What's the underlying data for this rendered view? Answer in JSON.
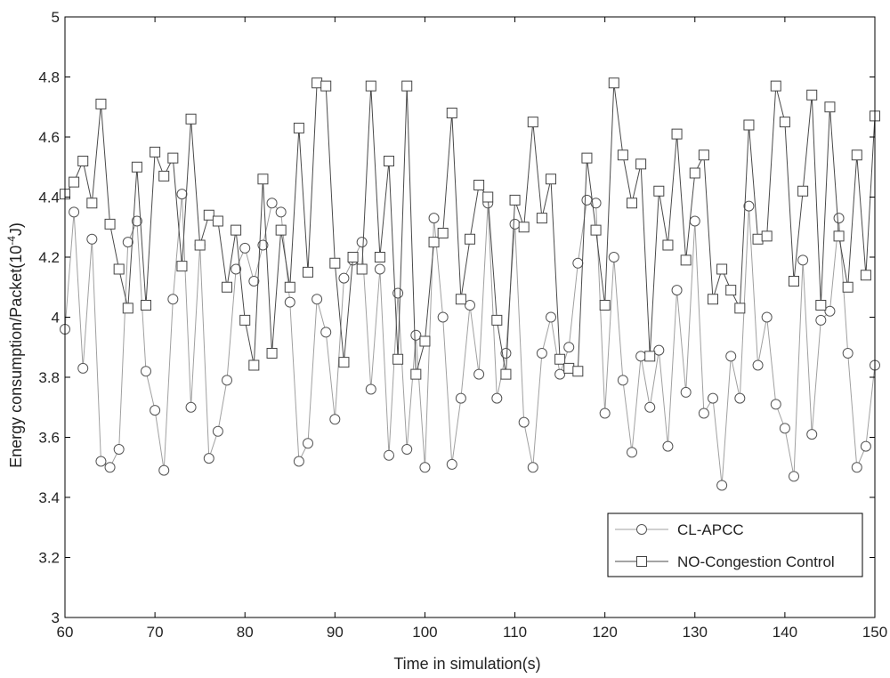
{
  "chart_data": {
    "type": "line",
    "xlabel": "Time in simulation(s)",
    "ylabel": "Energy consumption/Packet(10^-4 J)",
    "ylabel_main": "Energy consumption/Packet(10",
    "ylabel_exp": "-4",
    "ylabel_end": "J)",
    "xlim": [
      60,
      150
    ],
    "ylim": [
      3,
      5
    ],
    "x_ticks": [
      60,
      70,
      80,
      90,
      100,
      110,
      120,
      130,
      140,
      150
    ],
    "x_tick_labels": [
      "60",
      "70",
      "80",
      "90",
      "100",
      "110",
      "120",
      "130",
      "140",
      "150"
    ],
    "y_ticks": [
      3,
      3.2,
      3.4,
      3.6,
      3.8,
      4,
      4.2,
      4.4,
      4.6,
      4.8,
      5
    ],
    "y_tick_labels": [
      "3",
      "3.2",
      "3.4",
      "3.6",
      "3.8",
      "4",
      "4.2",
      "4.4",
      "4.6",
      "4.8",
      "5"
    ],
    "grid": false,
    "legend_position": "bottom-right",
    "x": [
      60,
      61,
      62,
      63,
      64,
      65,
      66,
      67,
      68,
      69,
      70,
      71,
      72,
      73,
      74,
      75,
      76,
      77,
      78,
      79,
      80,
      81,
      82,
      83,
      84,
      85,
      86,
      87,
      88,
      89,
      90,
      91,
      92,
      93,
      94,
      95,
      96,
      97,
      98,
      99,
      100,
      101,
      102,
      103,
      104,
      105,
      106,
      107,
      108,
      109,
      110,
      111,
      112,
      113,
      114,
      115,
      116,
      117,
      118,
      119,
      120,
      121,
      122,
      123,
      124,
      125,
      126,
      127,
      128,
      129,
      130,
      131,
      132,
      133,
      134,
      135,
      136,
      137,
      138,
      139,
      140,
      141,
      142,
      143,
      144,
      145,
      146,
      147,
      148,
      149,
      150
    ],
    "series": [
      {
        "name": "CL-APCC",
        "marker": "circle",
        "color": "#a0a0a0",
        "values": [
          3.96,
          4.35,
          3.83,
          4.26,
          3.52,
          3.5,
          3.56,
          4.25,
          4.32,
          3.82,
          3.69,
          3.49,
          4.06,
          4.41,
          3.7,
          4.24,
          3.53,
          3.62,
          3.79,
          4.16,
          4.23,
          4.12,
          4.24,
          4.38,
          4.35,
          4.05,
          3.52,
          3.58,
          4.06,
          3.95,
          3.66,
          4.13,
          4.19,
          4.25,
          3.76,
          4.16,
          3.54,
          4.08,
          3.56,
          3.94,
          3.5,
          4.33,
          4.0,
          3.51,
          3.73,
          4.04,
          3.81,
          4.38,
          3.73,
          3.88,
          4.31,
          3.65,
          3.5,
          3.88,
          4.0,
          3.81,
          3.9,
          4.18,
          4.39,
          4.38,
          3.68,
          4.2,
          3.79,
          3.55,
          3.87,
          3.7,
          3.89,
          3.57,
          4.09,
          3.75,
          4.32,
          3.68,
          3.73,
          3.44,
          3.87,
          3.73,
          4.37,
          3.84,
          4.0,
          3.71,
          3.63,
          3.47,
          4.19,
          3.61,
          3.99,
          4.02,
          4.33,
          3.88,
          3.5,
          3.57,
          3.84
        ]
      },
      {
        "name": "NO-Congestion Control",
        "marker": "square",
        "color": "#4a4a4a",
        "values": [
          4.41,
          4.45,
          4.52,
          4.38,
          4.71,
          4.31,
          4.16,
          4.03,
          4.5,
          4.04,
          4.55,
          4.47,
          4.53,
          4.17,
          4.66,
          4.24,
          4.34,
          4.32,
          4.1,
          4.29,
          3.99,
          3.84,
          4.46,
          3.88,
          4.29,
          4.1,
          4.63,
          4.15,
          4.78,
          4.77,
          4.18,
          3.85,
          4.2,
          4.16,
          4.77,
          4.2,
          4.52,
          3.86,
          4.77,
          3.81,
          3.92,
          4.25,
          4.28,
          4.68,
          4.06,
          4.26,
          4.44,
          4.4,
          3.99,
          3.81,
          4.39,
          4.3,
          4.65,
          4.33,
          4.46,
          3.86,
          3.83,
          3.82,
          4.53,
          4.29,
          4.04,
          4.78,
          4.54,
          4.38,
          4.51,
          3.87,
          4.42,
          4.24,
          4.61,
          4.19,
          4.48,
          4.54,
          4.06,
          4.16,
          4.09,
          4.03,
          4.64,
          4.26,
          4.27,
          4.77,
          4.65,
          4.12,
          4.42,
          4.74,
          4.04,
          4.7,
          4.27,
          4.1,
          4.54,
          4.14,
          4.67
        ]
      }
    ]
  }
}
